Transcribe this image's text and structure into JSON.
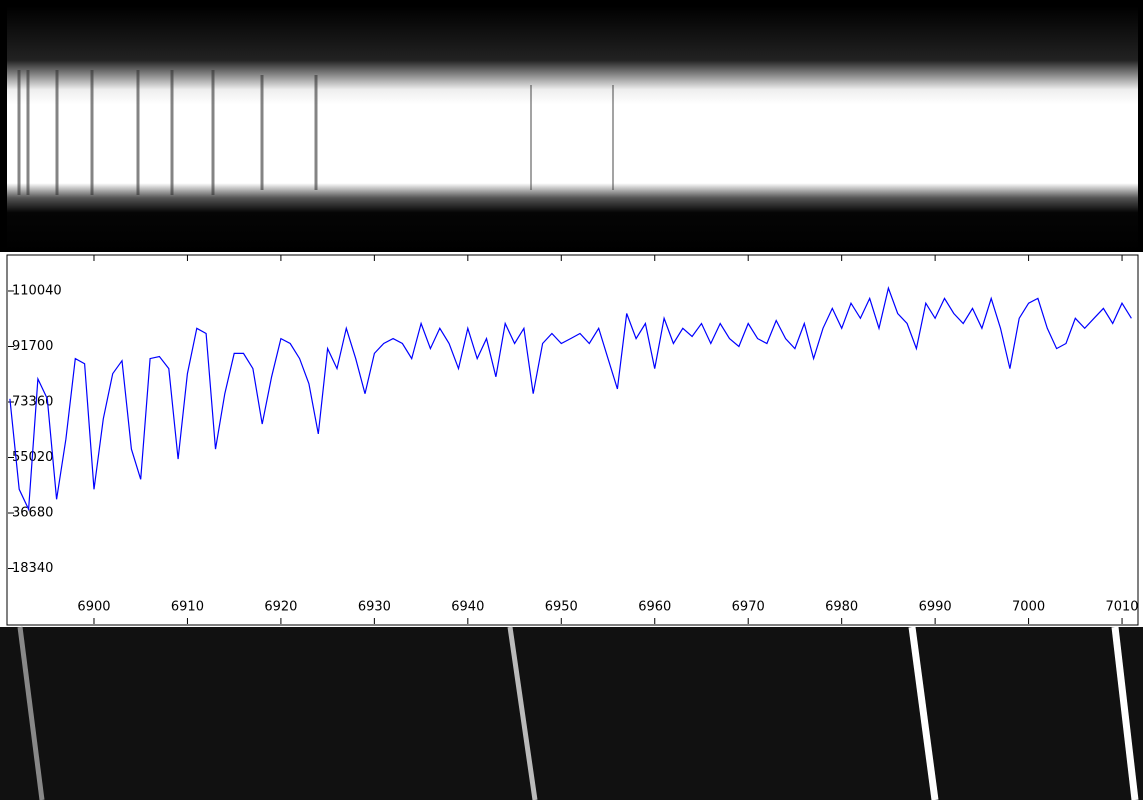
{
  "chart_data": {
    "type": "line",
    "color": "#0000ff",
    "x": [
      6891,
      6892,
      6893,
      6894,
      6895,
      6896,
      6897,
      6898,
      6899,
      6900,
      6901,
      6902,
      6903,
      6904,
      6905,
      6906,
      6907,
      6908,
      6909,
      6910,
      6911,
      6912,
      6913,
      6914,
      6915,
      6916,
      6917,
      6918,
      6919,
      6920,
      6921,
      6922,
      6923,
      6924,
      6925,
      6926,
      6927,
      6928,
      6929,
      6930,
      6931,
      6932,
      6933,
      6934,
      6935,
      6936,
      6937,
      6938,
      6939,
      6940,
      6941,
      6942,
      6943,
      6944,
      6945,
      6946,
      6947,
      6948,
      6949,
      6950,
      6951,
      6952,
      6953,
      6954,
      6955,
      6956,
      6957,
      6958,
      6959,
      6960,
      6961,
      6962,
      6963,
      6964,
      6965,
      6966,
      6967,
      6968,
      6969,
      6970,
      6971,
      6972,
      6973,
      6974,
      6975,
      6976,
      6977,
      6978,
      6979,
      6980,
      6981,
      6982,
      6983,
      6984,
      6985,
      6986,
      6987,
      6988,
      6989,
      6990,
      6991,
      6992,
      6993,
      6994,
      6995,
      6996,
      6997,
      6998,
      6999,
      7000,
      7001,
      7002,
      7003,
      7004,
      7005,
      7006,
      7007,
      7008,
      7009,
      7010,
      7011
    ],
    "values": [
      74400,
      44500,
      37900,
      81000,
      74400,
      41200,
      61100,
      87700,
      86000,
      44500,
      67800,
      82700,
      87000,
      57800,
      47800,
      87700,
      88400,
      84400,
      54500,
      82700,
      97700,
      96000,
      57800,
      76100,
      89400,
      89400,
      84400,
      66100,
      81700,
      94300,
      92700,
      87700,
      79400,
      62800,
      91000,
      84400,
      97700,
      87700,
      76100,
      89400,
      92700,
      94300,
      92700,
      87700,
      99300,
      91000,
      97700,
      92700,
      84400,
      97700,
      87700,
      94300,
      81700,
      99300,
      92700,
      97700,
      76100,
      92700,
      96000,
      92700,
      94300,
      96000,
      92700,
      97700,
      87700,
      77700,
      102600,
      94300,
      99300,
      84400,
      101000,
      92700,
      97700,
      95000,
      99300,
      92700,
      99300,
      94300,
      91700,
      99300,
      94300,
      92700,
      100300,
      94300,
      91000,
      99300,
      87700,
      97700,
      104300,
      97700,
      106000,
      101000,
      107600,
      97700,
      111000,
      102600,
      99300,
      91000,
      106000,
      101000,
      107600,
      102600,
      99300,
      104300,
      97700,
      107600,
      97700,
      84400,
      101000,
      106000,
      107600,
      97700,
      91000,
      92700,
      101000,
      97700,
      101000,
      104300,
      99300,
      106000,
      101000
    ],
    "xlim": [
      6890.8,
      7011.6
    ],
    "ylim": [
      0,
      121600
    ],
    "xticks": [
      6900,
      6910,
      6920,
      6930,
      6940,
      6950,
      6960,
      6970,
      6980,
      6990,
      7000,
      7010
    ],
    "yticks": [
      18340,
      36680,
      55020,
      73360,
      91700,
      110040
    ]
  }
}
